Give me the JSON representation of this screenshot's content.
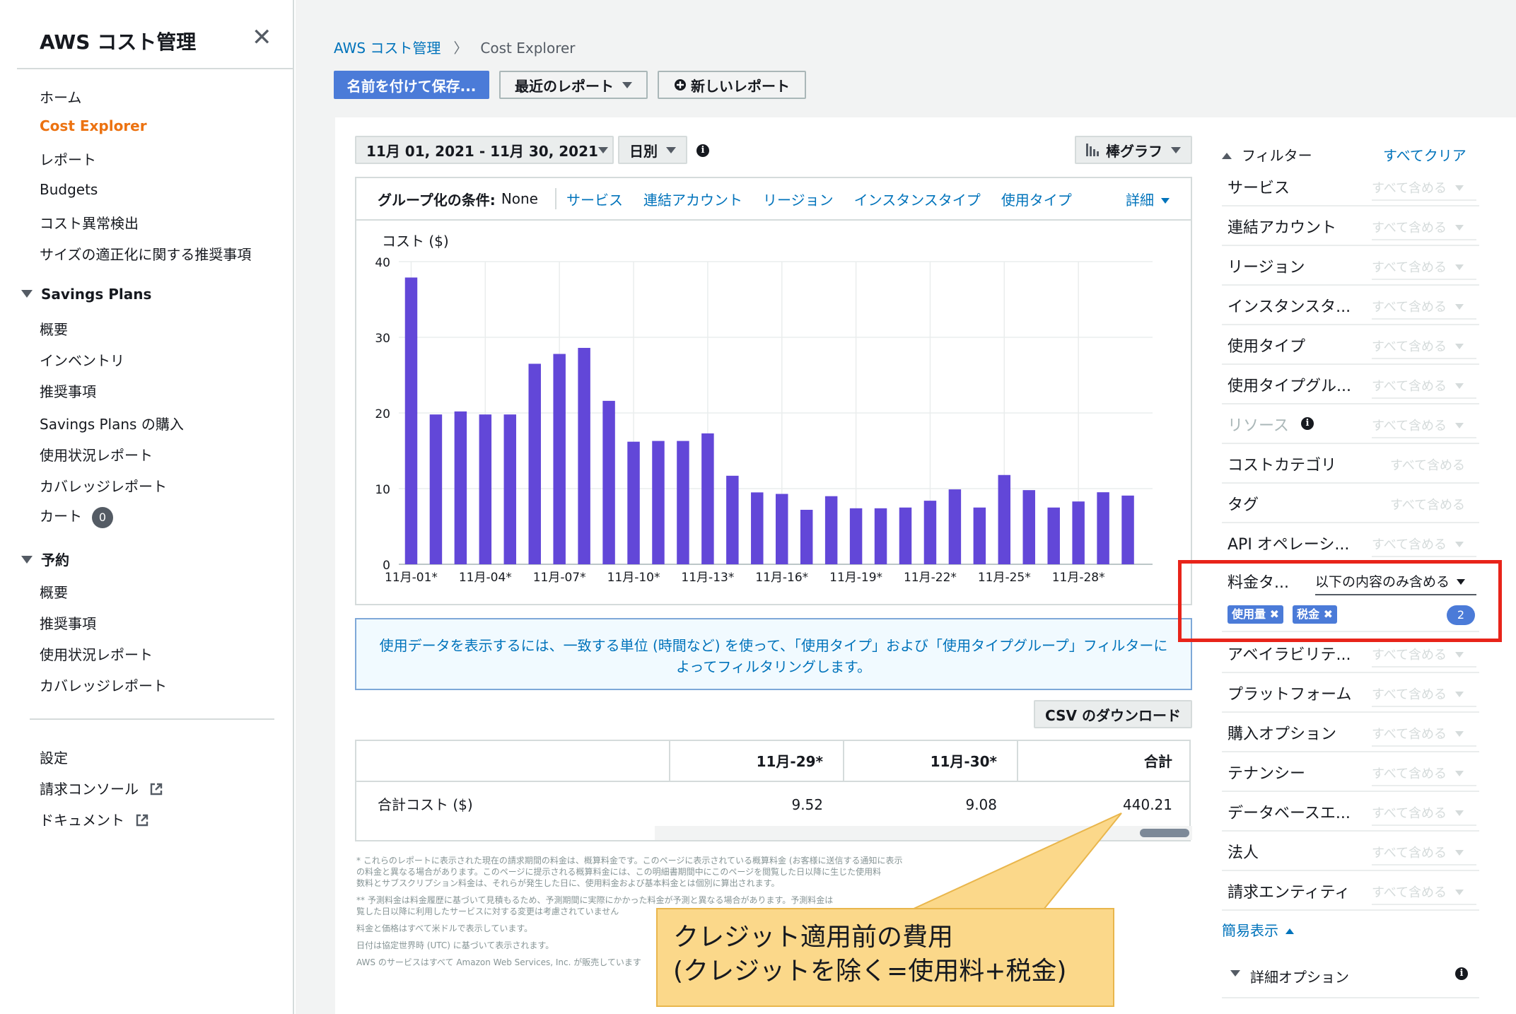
{
  "sidebar": {
    "title": "AWS コスト管理",
    "items": [
      {
        "label": "ホーム"
      },
      {
        "label": "Cost Explorer"
      },
      {
        "label": "レポート"
      },
      {
        "label": "Budgets"
      },
      {
        "label": "コスト異常検出"
      },
      {
        "label": "サイズの適正化に関する推奨事項"
      }
    ],
    "savings_section": "Savings Plans",
    "savings_items": [
      {
        "label": "概要"
      },
      {
        "label": "インベントリ"
      },
      {
        "label": "推奨事項"
      },
      {
        "label": "Savings Plans の購入"
      },
      {
        "label": "使用状況レポート"
      },
      {
        "label": "カバレッジレポート"
      },
      {
        "label": "カート"
      }
    ],
    "cart_count": "0",
    "reserve_section": "予約",
    "reserve_items": [
      {
        "label": "概要"
      },
      {
        "label": "推奨事項"
      },
      {
        "label": "使用状況レポート"
      },
      {
        "label": "カバレッジレポート"
      }
    ],
    "footer_items": [
      {
        "label": "設定"
      },
      {
        "label": "請求コンソール"
      },
      {
        "label": "ドキュメント"
      }
    ]
  },
  "breadcrumb": {
    "root": "AWS コスト管理",
    "current": "Cost Explorer"
  },
  "toolbar": {
    "save_as": "名前を付けて保存...",
    "recent_reports": "最近のレポート",
    "new_report": "新しいレポート"
  },
  "controls": {
    "date_range": "11月 01, 2021 - 11月 30, 2021",
    "granularity": "日別",
    "chart_type": "棒グラフ"
  },
  "grouping": {
    "label": "グループ化の条件:",
    "value": "None",
    "options": [
      "サービス",
      "連結アカウント",
      "リージョン",
      "インスタンスタイプ",
      "使用タイプ"
    ],
    "more": "詳細"
  },
  "chart_data": {
    "type": "bar",
    "ylabel": "コスト ($)",
    "ylim": [
      0,
      40
    ],
    "yticks": [
      0,
      10,
      20,
      30,
      40
    ],
    "categories": [
      "11月-01*",
      "11月-02*",
      "11月-03*",
      "11月-04*",
      "11月-05*",
      "11月-06*",
      "11月-07*",
      "11月-08*",
      "11月-09*",
      "11月-10*",
      "11月-11*",
      "11月-12*",
      "11月-13*",
      "11月-14*",
      "11月-15*",
      "11月-16*",
      "11月-17*",
      "11月-18*",
      "11月-19*",
      "11月-20*",
      "11月-21*",
      "11月-22*",
      "11月-23*",
      "11月-24*",
      "11月-25*",
      "11月-26*",
      "11月-27*",
      "11月-28*",
      "11月-29*",
      "11月-30*"
    ],
    "shown_tick_labels": [
      "11月-01*",
      "11月-04*",
      "11月-07*",
      "11月-10*",
      "11月-13*",
      "11月-16*",
      "11月-19*",
      "11月-22*",
      "11月-25*",
      "11月-28*"
    ],
    "values": [
      37.9,
      19.8,
      20.2,
      19.8,
      19.8,
      26.5,
      27.8,
      28.6,
      21.6,
      16.2,
      16.3,
      16.3,
      17.3,
      11.7,
      9.5,
      9.3,
      7.2,
      9.0,
      7.4,
      7.4,
      7.5,
      8.4,
      9.9,
      7.5,
      11.8,
      9.8,
      7.5,
      8.3,
      9.52,
      9.08
    ],
    "bar_color": "#6247d8",
    "grid": true
  },
  "banner": {
    "line1": "使用データを表示するには、一致する単位 (時間など) を使って、「使用タイプ」および「使用タイプグループ」フィルターに",
    "line2": "よってフィルタリングします。"
  },
  "csv_button": "CSV のダウンロード",
  "table": {
    "headers": [
      "11月-29*",
      "11月-30*",
      "合計"
    ],
    "row_label": "合計コスト ($)",
    "values": [
      "9.52",
      "9.08",
      "440.21"
    ]
  },
  "footnotes": [
    "* これらのレポートに表示された現在の請求期間の料金は、概算料金です。このページに表示されている概算料金 (お客様に送信する通知に表示",
    "の料金と異なる場合があります。このページに提示される概算料金には、この明細書期間中にこのページを閲覧した日以降に生じた使用料",
    "数料とサブスクリプション料金は、それらが発生した日に、使用料金および基本料金とは個別に算出されます。",
    "** 予測料金は料金履歴に基づいて見積もるため、予測期間に実際にかかった料金が予測と異なる場合があります。予測料金は",
    "覧した日以降に利用したサービスに対する変更は考慮されていません",
    "料金と価格はすべて米ドルで表示しています。",
    "日付は協定世界時 (UTC) に基づいて表示されます。",
    "AWS のサービスはすべて Amazon Web Services, Inc. が販売しています"
  ],
  "filters": {
    "heading": "フィルター",
    "clear_all": "すべてクリア",
    "rows_top": [
      {
        "name": "サービス",
        "value": "すべて含める"
      },
      {
        "name": "連結アカウント",
        "value": "すべて含める"
      },
      {
        "name": "リージョン",
        "value": "すべて含める"
      },
      {
        "name": "インスタンスタ...",
        "value": "すべて含める"
      },
      {
        "name": "使用タイプ",
        "value": "すべて含める"
      },
      {
        "name": "使用タイプグル...",
        "value": "すべて含める"
      },
      {
        "name": "リソース",
        "value": "すべて含める"
      },
      {
        "name": "コストカテゴリ",
        "value": "すべて含める"
      },
      {
        "name": "タグ",
        "value": "すべて含める"
      },
      {
        "name": "API オペレーシ...",
        "value": "すべて含める"
      }
    ],
    "charge_type": {
      "name": "料金タ...",
      "mode": "以下の内容のみ含める",
      "chips": [
        "使用量",
        "税金"
      ],
      "count": "2"
    },
    "rows_bottom": [
      {
        "name": "アベイラビリテ...",
        "value": "すべて含める"
      },
      {
        "name": "プラットフォーム",
        "value": "すべて含める"
      },
      {
        "name": "購入オプション",
        "value": "すべて含める"
      },
      {
        "name": "テナンシー",
        "value": "すべて含める"
      },
      {
        "name": "データベースエ...",
        "value": "すべて含める"
      },
      {
        "name": "法人",
        "value": "すべて含める"
      },
      {
        "name": "請求エンティティ",
        "value": "すべて含める"
      }
    ],
    "simple_view": "簡易表示",
    "advanced_options": "詳細オプション"
  },
  "callout": {
    "line1": "クレジット適用前の費用",
    "line2": "(クレジットを除く=使用料+税金)"
  }
}
